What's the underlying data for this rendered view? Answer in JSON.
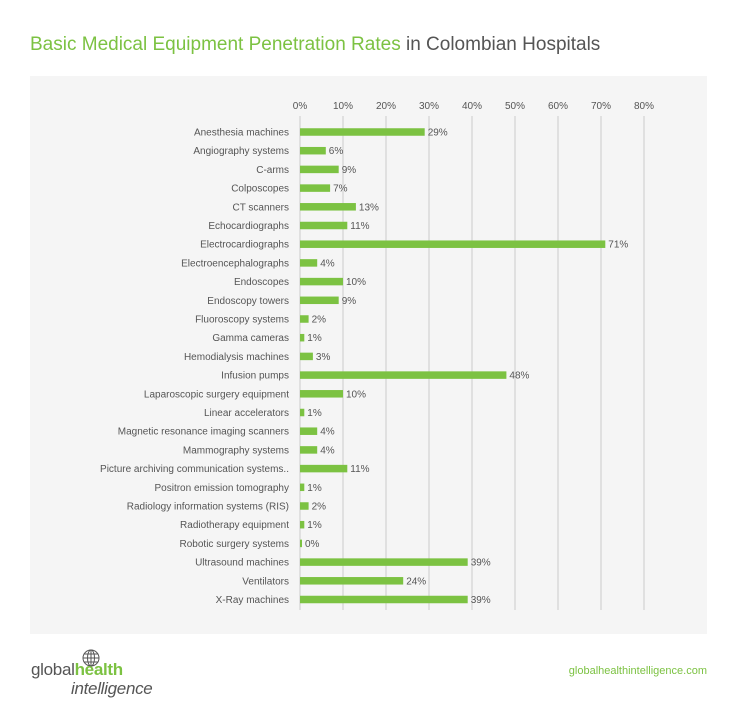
{
  "header": {
    "title_accent": "Basic Medical Equipment Penetration Rates",
    "title_rest": " in Colombian Hospitals"
  },
  "footer": {
    "logo_part1": "global",
    "logo_part2": "health",
    "logo_part3": "intelligence",
    "url": "globalhealthintelligence.com"
  },
  "colors": {
    "accent": "#7cc242",
    "text": "#555555",
    "panel": "#f5f5f5",
    "grid": "#cccccc"
  },
  "chart_data": {
    "type": "bar",
    "orientation": "horizontal",
    "categories": [
      "Anesthesia machines",
      "Angiography systems",
      "C-arms",
      "Colposcopes",
      "CT scanners",
      "Echocardiographs",
      "Electrocardiographs",
      "Electroencephalographs",
      "Endoscopes",
      "Endoscopy towers",
      "Fluoroscopy systems",
      "Gamma cameras",
      "Hemodialysis machines",
      "Infusion pumps",
      "Laparoscopic surgery equipment",
      "Linear accelerators",
      "Magnetic resonance imaging scanners",
      "Mammography systems",
      "Picture archiving communication systems..",
      "Positron emission tomography",
      "Radiology information systems (RIS)",
      "Radiotherapy equipment",
      "Robotic surgery systems",
      "Ultrasound machines",
      "Ventilators",
      "X-Ray machines"
    ],
    "values": [
      29,
      6,
      9,
      7,
      13,
      11,
      71,
      4,
      10,
      9,
      2,
      1,
      3,
      48,
      10,
      1,
      4,
      4,
      11,
      1,
      2,
      1,
      0,
      39,
      24,
      39
    ],
    "value_labels": [
      "29%",
      "6%",
      "9%",
      "7%",
      "13%",
      "11%",
      "71%",
      "4%",
      "10%",
      "9%",
      "2%",
      "1%",
      "3%",
      "48%",
      "10%",
      "1%",
      "4%",
      "4%",
      "11%",
      "1%",
      "2%",
      "1%",
      "0%",
      "39%",
      "24%",
      "39%"
    ],
    "ticks": [
      "0%",
      "10%",
      "20%",
      "30%",
      "40%",
      "50%",
      "60%",
      "70%",
      "80%"
    ],
    "xlim": [
      0,
      80
    ],
    "grid": true,
    "axis_position": "top"
  }
}
